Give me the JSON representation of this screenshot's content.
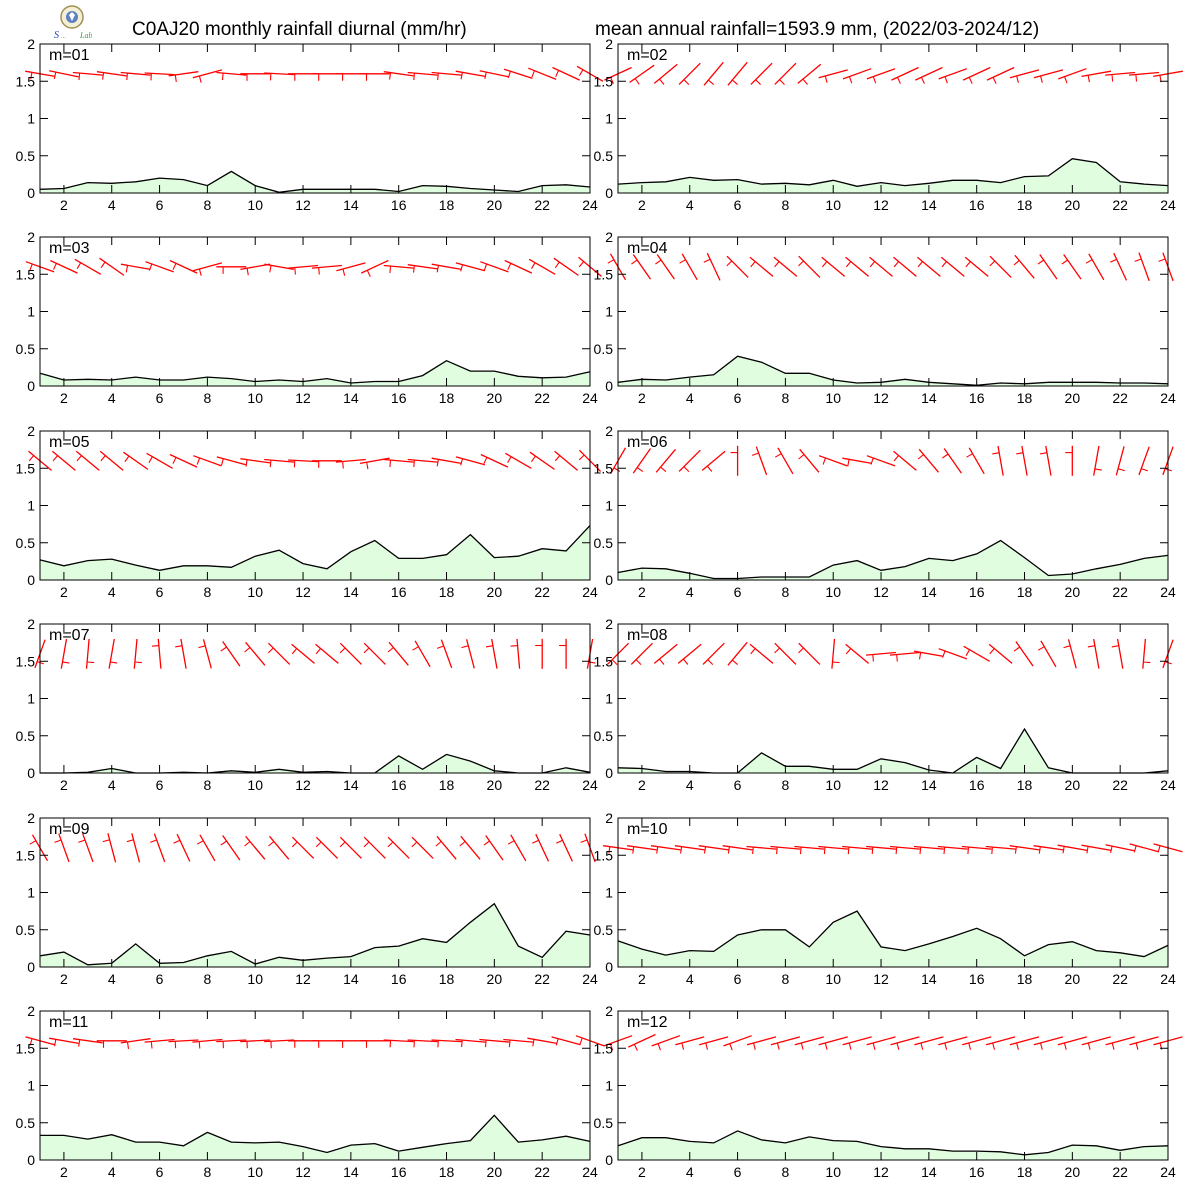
{
  "page": {
    "title_left": "C0AJ20 monthly rainfall diurnal (mm/hr)",
    "title_right": "mean annual rainfall=1593.9 mm, (2022/03-2024/12)"
  },
  "colors": {
    "fill": "#e0fde0",
    "line": "#000000",
    "wind": "#ff0000"
  },
  "chart_data": [
    {
      "type": "area",
      "label": "m=01",
      "x": [
        1,
        2,
        3,
        4,
        5,
        6,
        7,
        8,
        9,
        10,
        11,
        12,
        13,
        14,
        15,
        16,
        17,
        18,
        19,
        20,
        21,
        22,
        23,
        24
      ],
      "ylim": [
        0,
        2
      ],
      "yticks": [
        0,
        0.5,
        1,
        1.5,
        2
      ],
      "xticks": [
        2,
        4,
        6,
        8,
        10,
        12,
        14,
        16,
        18,
        20,
        22,
        24
      ],
      "values": [
        0.05,
        0.06,
        0.14,
        0.13,
        0.15,
        0.2,
        0.18,
        0.1,
        0.29,
        0.1,
        0.01,
        0.05,
        0.05,
        0.05,
        0.05,
        0.02,
        0.1,
        0.09,
        0.06,
        0.04,
        0.02,
        0.1,
        0.11,
        0.08
      ],
      "wind_angle_deg": [
        -10,
        -12,
        -5,
        -8,
        -5,
        -3,
        8,
        15,
        -5,
        0,
        -3,
        0,
        0,
        0,
        0,
        -8,
        -5,
        -5,
        -10,
        -12,
        -18,
        -22,
        -25,
        -30
      ]
    },
    {
      "type": "area",
      "label": "m=02",
      "x": [
        1,
        2,
        3,
        4,
        5,
        6,
        7,
        8,
        9,
        10,
        11,
        12,
        13,
        14,
        15,
        16,
        17,
        18,
        19,
        20,
        21,
        22,
        23,
        24
      ],
      "ylim": [
        0,
        2
      ],
      "yticks": [
        0,
        0.5,
        1,
        1.5,
        2
      ],
      "xticks": [
        2,
        4,
        6,
        8,
        10,
        12,
        14,
        16,
        18,
        20,
        22,
        24
      ],
      "values": [
        0.12,
        0.14,
        0.15,
        0.21,
        0.17,
        0.18,
        0.12,
        0.13,
        0.11,
        0.17,
        0.09,
        0.14,
        0.1,
        0.13,
        0.17,
        0.17,
        0.14,
        0.22,
        0.23,
        0.46,
        0.41,
        0.15,
        0.12,
        0.1
      ],
      "wind_angle_deg": [
        25,
        35,
        40,
        45,
        50,
        50,
        45,
        45,
        40,
        15,
        20,
        20,
        25,
        25,
        20,
        25,
        25,
        15,
        15,
        20,
        10,
        5,
        5,
        10
      ]
    },
    {
      "type": "area",
      "label": "m=03",
      "x": [
        1,
        2,
        3,
        4,
        5,
        6,
        7,
        8,
        9,
        10,
        11,
        12,
        13,
        14,
        15,
        16,
        17,
        18,
        19,
        20,
        21,
        22,
        23,
        24
      ],
      "ylim": [
        0,
        2
      ],
      "yticks": [
        0,
        0.5,
        1,
        1.5,
        2
      ],
      "xticks": [
        2,
        4,
        6,
        8,
        10,
        12,
        14,
        16,
        18,
        20,
        22,
        24
      ],
      "values": [
        0.17,
        0.08,
        0.09,
        0.08,
        0.12,
        0.08,
        0.08,
        0.12,
        0.1,
        0.06,
        0.08,
        0.06,
        0.1,
        0.04,
        0.06,
        0.06,
        0.14,
        0.34,
        0.2,
        0.2,
        0.13,
        0.11,
        0.12,
        0.19
      ],
      "wind_angle_deg": [
        -20,
        -25,
        -30,
        -35,
        -10,
        -20,
        -25,
        15,
        0,
        10,
        -10,
        5,
        5,
        15,
        25,
        -5,
        -8,
        -10,
        -15,
        -20,
        -25,
        -30,
        -35,
        -40
      ]
    },
    {
      "type": "area",
      "label": "m=04",
      "x": [
        1,
        2,
        3,
        4,
        5,
        6,
        7,
        8,
        9,
        10,
        11,
        12,
        13,
        14,
        15,
        16,
        17,
        18,
        19,
        20,
        21,
        22,
        23,
        24
      ],
      "ylim": [
        0,
        2
      ],
      "yticks": [
        0,
        0.5,
        1,
        1.5,
        2
      ],
      "xticks": [
        2,
        4,
        6,
        8,
        10,
        12,
        14,
        16,
        18,
        20,
        22,
        24
      ],
      "values": [
        0.05,
        0.09,
        0.08,
        0.12,
        0.15,
        0.4,
        0.32,
        0.17,
        0.17,
        0.08,
        0.04,
        0.05,
        0.09,
        0.05,
        0.03,
        0.01,
        0.04,
        0.03,
        0.05,
        0.05,
        0.05,
        0.04,
        0.04,
        0.03
      ],
      "wind_angle_deg": [
        -60,
        -55,
        -55,
        -60,
        -65,
        -45,
        -40,
        -40,
        -45,
        -40,
        -40,
        -40,
        -40,
        -40,
        -40,
        -40,
        -45,
        -50,
        -55,
        -55,
        -60,
        -65,
        -70,
        -70
      ]
    },
    {
      "type": "area",
      "label": "m=05",
      "x": [
        1,
        2,
        3,
        4,
        5,
        6,
        7,
        8,
        9,
        10,
        11,
        12,
        13,
        14,
        15,
        16,
        17,
        18,
        19,
        20,
        21,
        22,
        23,
        24
      ],
      "ylim": [
        0,
        2
      ],
      "yticks": [
        0,
        0.5,
        1,
        1.5,
        2
      ],
      "xticks": [
        2,
        4,
        6,
        8,
        10,
        12,
        14,
        16,
        18,
        20,
        22,
        24
      ],
      "values": [
        0.27,
        0.19,
        0.26,
        0.28,
        0.2,
        0.13,
        0.19,
        0.19,
        0.17,
        0.32,
        0.4,
        0.22,
        0.15,
        0.38,
        0.53,
        0.29,
        0.29,
        0.34,
        0.61,
        0.3,
        0.32,
        0.42,
        0.39,
        0.73
      ],
      "wind_angle_deg": [
        -40,
        -40,
        -40,
        -40,
        -35,
        -30,
        -25,
        -20,
        -15,
        -8,
        -5,
        -3,
        0,
        5,
        10,
        -5,
        -5,
        -10,
        -15,
        -25,
        -30,
        -35,
        -40,
        -45
      ]
    },
    {
      "type": "area",
      "label": "m=06",
      "x": [
        1,
        2,
        3,
        4,
        5,
        6,
        7,
        8,
        9,
        10,
        11,
        12,
        13,
        14,
        15,
        16,
        17,
        18,
        19,
        20,
        21,
        22,
        23,
        24
      ],
      "ylim": [
        0,
        2
      ],
      "yticks": [
        0,
        0.5,
        1,
        1.5,
        2
      ],
      "xticks": [
        2,
        4,
        6,
        8,
        10,
        12,
        14,
        16,
        18,
        20,
        22,
        24
      ],
      "values": [
        0.1,
        0.16,
        0.15,
        0.09,
        0.02,
        0.02,
        0.04,
        0.04,
        0.04,
        0.2,
        0.26,
        0.13,
        0.18,
        0.29,
        0.26,
        0.35,
        0.53,
        0.3,
        0.06,
        0.08,
        0.15,
        0.21,
        0.29,
        0.33
      ],
      "wind_angle_deg": [
        60,
        55,
        50,
        45,
        40,
        -90,
        -70,
        -60,
        -50,
        -20,
        -10,
        -20,
        -40,
        -50,
        -55,
        -60,
        -80,
        -80,
        -80,
        -90,
        80,
        75,
        70,
        70
      ]
    },
    {
      "type": "area",
      "label": "m=07",
      "x": [
        1,
        2,
        3,
        4,
        5,
        6,
        7,
        8,
        9,
        10,
        11,
        12,
        13,
        14,
        15,
        16,
        17,
        18,
        19,
        20,
        21,
        22,
        23,
        24
      ],
      "ylim": [
        0,
        2
      ],
      "yticks": [
        0,
        0.5,
        1,
        1.5,
        2
      ],
      "xticks": [
        2,
        4,
        6,
        8,
        10,
        12,
        14,
        16,
        18,
        20,
        22,
        24
      ],
      "values": [
        0.0,
        0.0,
        0.01,
        0.06,
        0.0,
        0.0,
        0.01,
        0.0,
        0.03,
        0.01,
        0.05,
        0.01,
        0.02,
        0.0,
        0.0,
        0.23,
        0.05,
        0.25,
        0.16,
        0.03,
        0.0,
        0.0,
        0.07,
        0.01
      ],
      "wind_angle_deg": [
        70,
        80,
        85,
        80,
        85,
        -85,
        -80,
        -75,
        -55,
        -50,
        -45,
        -40,
        -40,
        -45,
        -45,
        -50,
        -60,
        -70,
        -75,
        -80,
        -85,
        -90,
        -90,
        80
      ]
    },
    {
      "type": "area",
      "label": "m=08",
      "x": [
        1,
        2,
        3,
        4,
        5,
        6,
        7,
        8,
        9,
        10,
        11,
        12,
        13,
        14,
        15,
        16,
        17,
        18,
        19,
        20,
        21,
        22,
        23,
        24
      ],
      "ylim": [
        0,
        2
      ],
      "yticks": [
        0,
        0.5,
        1,
        1.5,
        2
      ],
      "xticks": [
        2,
        4,
        6,
        8,
        10,
        12,
        14,
        16,
        18,
        20,
        22,
        24
      ],
      "values": [
        0.07,
        0.06,
        0.02,
        0.02,
        0.0,
        0.0,
        0.27,
        0.09,
        0.09,
        0.05,
        0.05,
        0.19,
        0.14,
        0.04,
        0.0,
        0.21,
        0.06,
        0.59,
        0.07,
        0.0,
        0.0,
        0.0,
        0.0,
        0.03
      ],
      "wind_angle_deg": [
        45,
        45,
        40,
        40,
        45,
        50,
        -40,
        -45,
        -45,
        85,
        -40,
        5,
        5,
        -10,
        -20,
        -30,
        -40,
        -55,
        -60,
        -75,
        -80,
        -80,
        85,
        70
      ]
    },
    {
      "type": "area",
      "label": "m=09",
      "x": [
        1,
        2,
        3,
        4,
        5,
        6,
        7,
        8,
        9,
        10,
        11,
        12,
        13,
        14,
        15,
        16,
        17,
        18,
        19,
        20,
        21,
        22,
        23,
        24
      ],
      "ylim": [
        0,
        2
      ],
      "yticks": [
        0,
        0.5,
        1,
        1.5,
        2
      ],
      "xticks": [
        2,
        4,
        6,
        8,
        10,
        12,
        14,
        16,
        18,
        20,
        22,
        24
      ],
      "values": [
        0.15,
        0.2,
        0.03,
        0.05,
        0.31,
        0.05,
        0.06,
        0.15,
        0.21,
        0.04,
        0.13,
        0.09,
        0.12,
        0.14,
        0.26,
        0.28,
        0.38,
        0.33,
        0.6,
        0.85,
        0.28,
        0.13,
        0.48,
        0.43
      ],
      "wind_angle_deg": [
        -60,
        -70,
        -70,
        -75,
        -75,
        -70,
        -65,
        -60,
        -55,
        -50,
        -50,
        -45,
        -45,
        -45,
        -45,
        -45,
        -45,
        -50,
        -50,
        -55,
        -60,
        -65,
        -65,
        -70
      ]
    },
    {
      "type": "area",
      "label": "m=10",
      "x": [
        1,
        2,
        3,
        4,
        5,
        6,
        7,
        8,
        9,
        10,
        11,
        12,
        13,
        14,
        15,
        16,
        17,
        18,
        19,
        20,
        21,
        22,
        23,
        24
      ],
      "ylim": [
        0,
        2
      ],
      "yticks": [
        0,
        0.5,
        1,
        1.5,
        2
      ],
      "xticks": [
        2,
        4,
        6,
        8,
        10,
        12,
        14,
        16,
        18,
        20,
        22,
        24
      ],
      "values": [
        0.35,
        0.24,
        0.16,
        0.22,
        0.21,
        0.43,
        0.5,
        0.5,
        0.27,
        0.6,
        0.75,
        0.27,
        0.22,
        0.31,
        0.41,
        0.52,
        0.38,
        0.15,
        0.3,
        0.34,
        0.22,
        0.19,
        0.14,
        0.29
      ],
      "wind_angle_deg": [
        -8,
        -8,
        -8,
        -8,
        -8,
        -8,
        -5,
        -5,
        -5,
        -5,
        -5,
        -5,
        -5,
        -5,
        -5,
        -5,
        -5,
        -8,
        -8,
        -10,
        -10,
        -12,
        -15,
        -15
      ]
    },
    {
      "type": "area",
      "label": "m=11",
      "x": [
        1,
        2,
        3,
        4,
        5,
        6,
        7,
        8,
        9,
        10,
        11,
        12,
        13,
        14,
        15,
        16,
        17,
        18,
        19,
        20,
        21,
        22,
        23,
        24
      ],
      "ylim": [
        0,
        2
      ],
      "yticks": [
        0,
        0.5,
        1,
        1.5,
        2
      ],
      "xticks": [
        2,
        4,
        6,
        8,
        10,
        12,
        14,
        16,
        18,
        20,
        22,
        24
      ],
      "values": [
        0.33,
        0.33,
        0.28,
        0.34,
        0.24,
        0.24,
        0.19,
        0.37,
        0.24,
        0.23,
        0.24,
        0.18,
        0.1,
        0.2,
        0.22,
        0.12,
        0.17,
        0.22,
        0.26,
        0.6,
        0.24,
        0.27,
        0.32,
        0.25
      ],
      "wind_angle_deg": [
        -15,
        -10,
        -8,
        0,
        8,
        5,
        3,
        5,
        3,
        3,
        3,
        0,
        0,
        0,
        0,
        -3,
        -3,
        -3,
        -5,
        -5,
        -5,
        -10,
        -15,
        -20
      ]
    },
    {
      "type": "area",
      "label": "m=12",
      "x": [
        1,
        2,
        3,
        4,
        5,
        6,
        7,
        8,
        9,
        10,
        11,
        12,
        13,
        14,
        15,
        16,
        17,
        18,
        19,
        20,
        21,
        22,
        23,
        24
      ],
      "ylim": [
        0,
        2
      ],
      "yticks": [
        0,
        0.5,
        1,
        1.5,
        2
      ],
      "xticks": [
        2,
        4,
        6,
        8,
        10,
        12,
        14,
        16,
        18,
        20,
        22,
        24
      ],
      "values": [
        0.19,
        0.3,
        0.3,
        0.25,
        0.23,
        0.39,
        0.27,
        0.23,
        0.31,
        0.26,
        0.25,
        0.18,
        0.15,
        0.15,
        0.12,
        0.12,
        0.11,
        0.07,
        0.1,
        0.2,
        0.19,
        0.13,
        0.18,
        0.19
      ],
      "wind_angle_deg": [
        20,
        25,
        20,
        15,
        15,
        20,
        15,
        15,
        15,
        15,
        15,
        15,
        15,
        15,
        15,
        15,
        15,
        15,
        15,
        15,
        15,
        15,
        15,
        15
      ]
    }
  ]
}
